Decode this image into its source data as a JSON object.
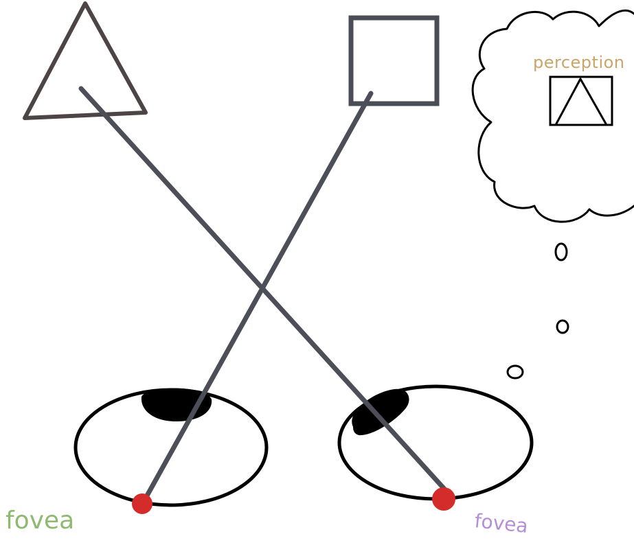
{
  "labels": {
    "fovea_left": "fovea",
    "fovea_right": "fovea",
    "perception": "perception"
  },
  "colors": {
    "background": "#ffffff",
    "triangle_stroke": "#4d4545",
    "square_stroke": "#4a4d55",
    "sight_line": "#4d4f58",
    "eye_outline": "#000000",
    "pupil": "#000000",
    "fovea_dot": "#d42b2b",
    "cloud_outline": "#000000",
    "label_letters_left": [
      "#7fbfae",
      "#8fb870",
      "#6fa7cf",
      "#d7c36a",
      "#c98fd6"
    ],
    "label_letters_right": [
      "#d08fb7",
      "#8fbf96",
      "#7aa6d6",
      "#d4b36a",
      "#b58fd6"
    ],
    "label_letters_perception": [
      "#e09aa0",
      "#d9b86a",
      "#c9c96a",
      "#8fc98f",
      "#8fc0d9",
      "#9aa7e0",
      "#c69ae0",
      "#e0a0c6",
      "#d9b06a",
      "#8fc99f"
    ]
  },
  "icons": {
    "object_triangle": "triangle-outline",
    "object_square": "square-outline",
    "eye_left": "eye-ellipse",
    "eye_right": "eye-ellipse",
    "thought_cloud": "thought-bubble",
    "perceived_shape": "triangle-in-square"
  }
}
